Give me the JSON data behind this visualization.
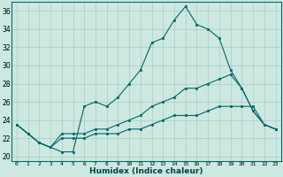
{
  "xlabel": "Humidex (Indice chaleur)",
  "ylabel": "",
  "background_color": "#cce8e0",
  "grid_color": "#aaccc4",
  "line_color": "#006868",
  "xlim": [
    -0.5,
    23.5
  ],
  "ylim": [
    19.5,
    37.0
  ],
  "yticks": [
    20,
    22,
    24,
    26,
    28,
    30,
    32,
    34,
    36
  ],
  "xticks": [
    0,
    1,
    2,
    3,
    4,
    5,
    6,
    7,
    8,
    9,
    10,
    11,
    12,
    13,
    14,
    15,
    16,
    17,
    18,
    19,
    20,
    21,
    22,
    23
  ],
  "series": [
    {
      "x": [
        0,
        1,
        2,
        3,
        4,
        5,
        6,
        7,
        8,
        9,
        10,
        11,
        12,
        13,
        14,
        15,
        16,
        17,
        18,
        19,
        20,
        21,
        22,
        23
      ],
      "y": [
        23.5,
        22.5,
        21.5,
        21.0,
        20.5,
        20.5,
        25.5,
        26.0,
        25.5,
        26.5,
        28.0,
        29.5,
        32.5,
        33.0,
        35.0,
        36.5,
        34.5,
        34.0,
        33.0,
        29.5,
        27.5,
        25.0,
        23.5,
        23.0
      ]
    },
    {
      "x": [
        0,
        1,
        2,
        3,
        4,
        5,
        6,
        7,
        8,
        9,
        10,
        11,
        12,
        13,
        14,
        15,
        16,
        17,
        18,
        19,
        20,
        21,
        22,
        23
      ],
      "y": [
        23.5,
        22.5,
        21.5,
        21.0,
        22.5,
        22.5,
        22.5,
        23.0,
        23.0,
        23.5,
        24.0,
        24.5,
        25.5,
        26.0,
        26.5,
        27.5,
        27.5,
        28.0,
        28.5,
        29.0,
        27.5,
        25.0,
        23.5,
        23.0
      ]
    },
    {
      "x": [
        0,
        1,
        2,
        3,
        4,
        5,
        6,
        7,
        8,
        9,
        10,
        11,
        12,
        13,
        14,
        15,
        16,
        17,
        18,
        19,
        20,
        21,
        22,
        23
      ],
      "y": [
        23.5,
        22.5,
        21.5,
        21.0,
        22.0,
        22.0,
        22.0,
        22.5,
        22.5,
        22.5,
        23.0,
        23.0,
        23.5,
        24.0,
        24.5,
        24.5,
        24.5,
        25.0,
        25.5,
        25.5,
        25.5,
        25.5,
        23.5,
        23.0
      ]
    }
  ]
}
